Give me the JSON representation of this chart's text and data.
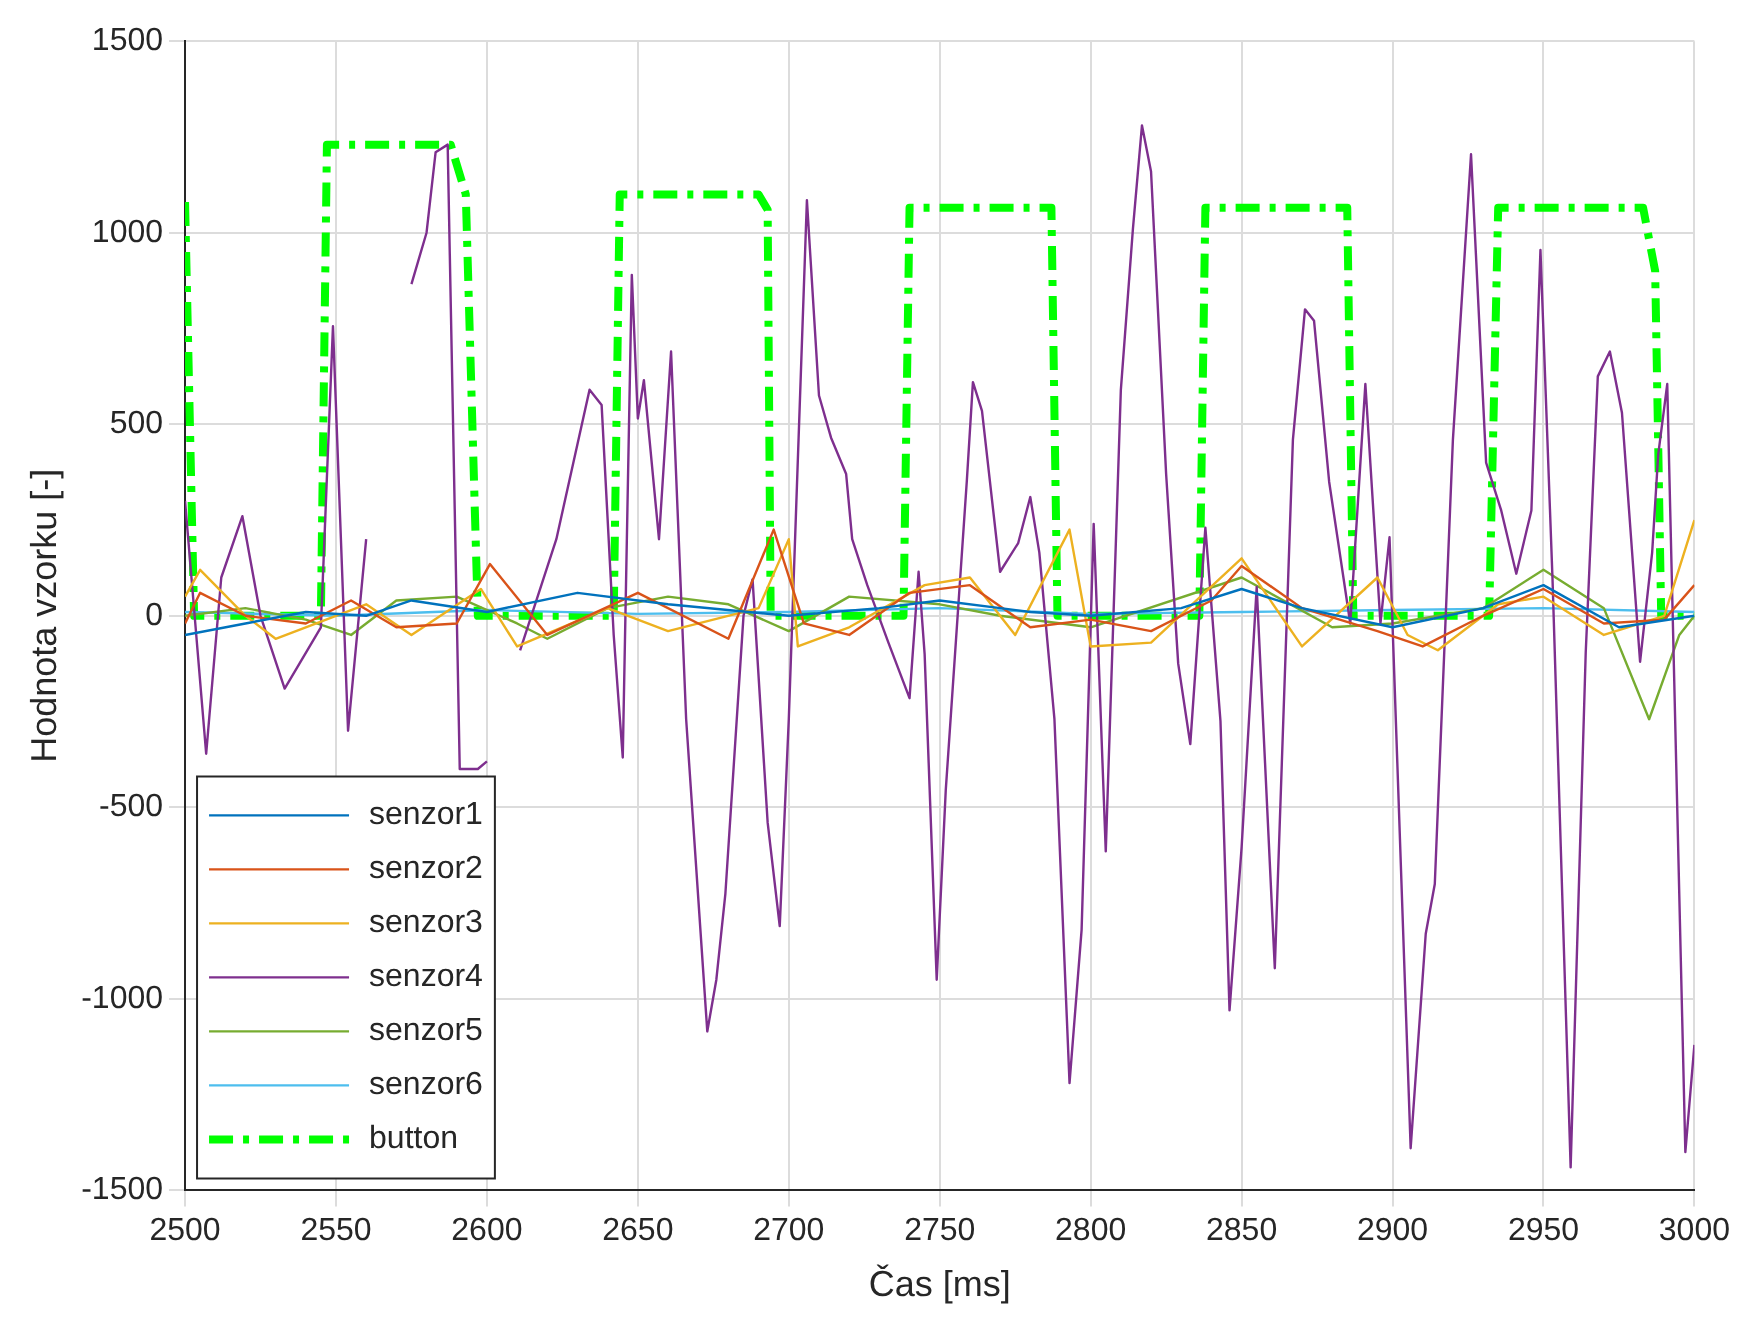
{
  "chart_data": {
    "type": "line",
    "xlabel": "Čas [ms]",
    "ylabel": "Hodnota vzorku [-]",
    "xlim": [
      2500,
      3000
    ],
    "xticks": [
      2500,
      2550,
      2600,
      2650,
      2700,
      2750,
      2800,
      2850,
      2900,
      2950,
      3000
    ],
    "ylim": [
      -1500,
      1500
    ],
    "yticks": [
      -1500,
      -1000,
      -500,
      0,
      500,
      1000,
      1500
    ],
    "grid": true,
    "legend": "bottom left",
    "marker": "none",
    "line_style": "solid",
    "series": [
      {
        "name": "senzor1",
        "color": "#0072bd",
        "x": [
          2500,
          2520,
          2540,
          2560,
          2575,
          2600,
          2630,
          2660,
          2700,
          2730,
          2750,
          2780,
          2800,
          2830,
          2850,
          2870,
          2900,
          2930,
          2950,
          2975,
          3000
        ],
        "values": [
          -50,
          -20,
          10,
          0,
          40,
          10,
          60,
          30,
          0,
          20,
          40,
          10,
          0,
          20,
          70,
          20,
          -30,
          20,
          80,
          -30,
          0
        ]
      },
      {
        "name": "senzor2",
        "color": "#d95319",
        "x": [
          2500,
          2505,
          2520,
          2540,
          2555,
          2570,
          2590,
          2601,
          2620,
          2650,
          2680,
          2695,
          2705,
          2720,
          2740,
          2760,
          2780,
          2800,
          2820,
          2840,
          2850,
          2870,
          2895,
          2910,
          2930,
          2950,
          2970,
          2990,
          3000
        ],
        "values": [
          -20,
          60,
          0,
          -20,
          40,
          -30,
          -20,
          135,
          -50,
          60,
          -60,
          225,
          -20,
          -50,
          60,
          80,
          -30,
          -10,
          -40,
          40,
          130,
          20,
          -40,
          -80,
          0,
          70,
          -20,
          -10,
          80
        ]
      },
      {
        "name": "senzor3",
        "color": "#edb120",
        "x": [
          2500,
          2505,
          2520,
          2530,
          2560,
          2575,
          2598,
          2610,
          2640,
          2660,
          2690,
          2700,
          2703,
          2720,
          2745,
          2760,
          2775,
          2793,
          2800,
          2820,
          2850,
          2870,
          2895,
          2905,
          2915,
          2935,
          2950,
          2970,
          2990,
          3000
        ],
        "values": [
          50,
          120,
          0,
          -60,
          30,
          -50,
          70,
          -80,
          20,
          -40,
          20,
          200,
          -80,
          -30,
          80,
          100,
          -50,
          225,
          -80,
          -70,
          150,
          -80,
          100,
          -50,
          -90,
          30,
          50,
          -50,
          0,
          250
        ]
      },
      {
        "name": "senzor4",
        "color": "#7e2f8e",
        "x": [
          2500,
          2507,
          2512,
          2519,
          2525,
          2533,
          2545,
          2549,
          2554,
          2560,
          2568,
          2575,
          2580,
          2583,
          2587,
          2591,
          2597,
          2600,
          2603,
          2611,
          2623,
          2634,
          2638,
          2642,
          2645,
          2648,
          2650,
          2652,
          2657,
          2661,
          2666,
          2673,
          2676,
          2679,
          2685,
          2688,
          2693,
          2697,
          2700,
          2706,
          2710,
          2714,
          2719,
          2721,
          2726,
          2733,
          2740,
          2743,
          2745,
          2749,
          2752,
          2759,
          2761,
          2764,
          2770,
          2776,
          2780,
          2783,
          2788,
          2793,
          2797,
          2801,
          2805,
          2810,
          2814,
          2817,
          2820,
          2825,
          2829,
          2833,
          2838,
          2843,
          2846,
          2850,
          2855,
          2861,
          2867,
          2871,
          2874,
          2879,
          2886,
          2891,
          2896,
          2899,
          2906,
          2911,
          2914,
          2920,
          2926,
          2931,
          2936,
          2941,
          2946,
          2949,
          2953,
          2959,
          2964,
          2968,
          2972,
          2976,
          2982,
          2986,
          2988,
          2991,
          2997,
          3000
        ],
        "values": [
          300,
          -360,
          100,
          260,
          0,
          -190,
          -30,
          756,
          -300,
          200,
          null,
          866,
          1000,
          1210,
          1230,
          -400,
          -400,
          -380,
          null,
          -90,
          200,
          590,
          550,
          -50,
          -370,
          890,
          515,
          615,
          200,
          690,
          -270,
          -1085,
          -950,
          -725,
          0,
          95,
          -540,
          -810,
          -270,
          1085,
          575,
          465,
          370,
          200,
          80,
          -70,
          -215,
          115,
          -100,
          -950,
          -455,
          355,
          610,
          535,
          115,
          190,
          310,
          165,
          -270,
          -1220,
          -820,
          240,
          -615,
          590,
          1010,
          1280,
          1160,
          370,
          -125,
          -335,
          230,
          -275,
          -1030,
          -605,
          75,
          -920,
          460,
          800,
          770,
          350,
          -20,
          605,
          -20,
          205,
          -1390,
          -830,
          -700,
          460,
          1205,
          400,
          275,
          110,
          275,
          955,
          95,
          -1440,
          -95,
          625,
          690,
          530,
          -120,
          165,
          420,
          605,
          -1400,
          -1120
        ]
      },
      {
        "name": "senzor5",
        "color": "#77ac30",
        "x": [
          2500,
          2520,
          2540,
          2555,
          2570,
          2590,
          2610,
          2620,
          2640,
          2660,
          2680,
          2700,
          2720,
          2750,
          2770,
          2800,
          2850,
          2880,
          2900,
          2930,
          2950,
          2970,
          2985,
          2995,
          3000
        ],
        "values": [
          0,
          20,
          -10,
          -50,
          40,
          50,
          -20,
          -60,
          20,
          50,
          30,
          -40,
          50,
          30,
          0,
          -30,
          100,
          -30,
          -20,
          20,
          120,
          20,
          -270,
          -50,
          0
        ]
      },
      {
        "name": "senzor6",
        "color": "#4dbeee",
        "x": [
          2500,
          2550,
          2600,
          2650,
          2700,
          2750,
          2800,
          2850,
          2900,
          2950,
          3000
        ],
        "values": [
          10,
          0,
          15,
          5,
          10,
          20,
          5,
          10,
          15,
          20,
          10
        ]
      },
      {
        "name": "button",
        "color": "#00ff00",
        "line_style": "dashed",
        "x": [
          2500,
          2503,
          2545,
          2547,
          2588,
          2593,
          2597,
          2642,
          2644,
          2690,
          2693,
          2694,
          2738,
          2740,
          2787,
          2789,
          2836,
          2838,
          2885,
          2887,
          2932,
          2935,
          2983,
          2987,
          2989,
          3000
        ],
        "values": [
          1080,
          0,
          0,
          1230,
          1230,
          1100,
          0,
          0,
          1100,
          1100,
          1060,
          0,
          0,
          1065,
          1065,
          0,
          0,
          1065,
          1065,
          0,
          0,
          1065,
          1065,
          900,
          0,
          0
        ]
      }
    ]
  }
}
